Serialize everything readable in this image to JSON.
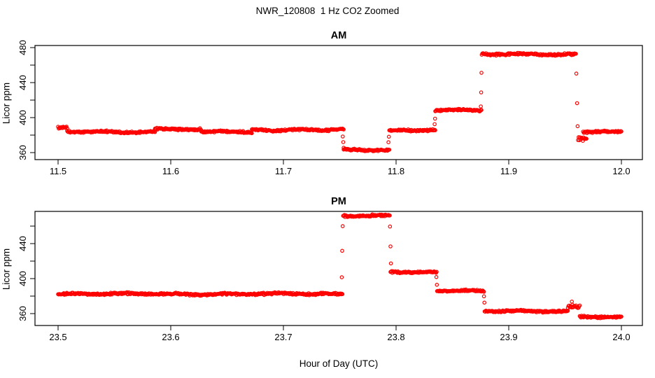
{
  "figure": {
    "title": "NWR_120808  1 Hz CO2 Zoomed",
    "xlabel": "Hour of Day (UTC)"
  },
  "colors": {
    "points": "#FF0000",
    "axis": "#000000",
    "background": "#FFFFFF"
  },
  "chart_data": [
    {
      "type": "scatter",
      "title": "AM",
      "ylabel": "Licor ppm",
      "marker": "open-circle",
      "xlim": [
        11.48,
        12.02
      ],
      "ylim": [
        352.0,
        482.4
      ],
      "x_ticks": [
        {
          "v": 11.5,
          "label": "11.5"
        },
        {
          "v": 11.6,
          "label": "11.6"
        },
        {
          "v": 11.7,
          "label": "11.7"
        },
        {
          "v": 11.8,
          "label": "11.8"
        },
        {
          "v": 11.9,
          "label": "11.9"
        },
        {
          "v": 12.0,
          "label": "12.0"
        }
      ],
      "y_ticks": [
        {
          "v": 360,
          "label": "360"
        },
        {
          "v": 380,
          "label": ""
        },
        {
          "v": 400,
          "label": "400"
        },
        {
          "v": 420,
          "label": ""
        },
        {
          "v": 440,
          "label": "440"
        },
        {
          "v": 460,
          "label": ""
        },
        {
          "v": 480,
          "label": "480"
        }
      ],
      "segments": [
        {
          "t0": 11.5,
          "t1": 11.508,
          "level": 388.5,
          "noise": 1.2,
          "wiggle": 0.3
        },
        {
          "t0": 11.508,
          "t1": 11.586,
          "level": 383.8,
          "noise": 1.4,
          "wiggle": 0.7
        },
        {
          "t0": 11.586,
          "t1": 11.627,
          "level": 387.0,
          "noise": 1.3,
          "wiggle": 0.5
        },
        {
          "t0": 11.627,
          "t1": 11.672,
          "level": 384.0,
          "noise": 1.3,
          "wiggle": 0.6
        },
        {
          "t0": 11.672,
          "t1": 11.7535,
          "level": 386.3,
          "noise": 1.3,
          "wiggle": 0.8
        },
        {
          "t0": 11.7535,
          "t1": 11.794,
          "level": 362.8,
          "noise": 1.3,
          "wiggle": 0.5
        },
        {
          "t0": 11.794,
          "t1": 11.8348,
          "level": 385.5,
          "noise": 1.3,
          "wiggle": 0.5
        },
        {
          "t0": 11.8348,
          "t1": 11.8758,
          "level": 408.3,
          "noise": 1.2,
          "wiggle": 0.5
        },
        {
          "t0": 11.876,
          "t1": 11.9596,
          "level": 472.4,
          "noise": 1.4,
          "wiggle": 0.6
        },
        {
          "t0": 11.9615,
          "t1": 11.969,
          "level": 375.5,
          "noise": 3.0,
          "wiggle": 0.0
        },
        {
          "t0": 11.966,
          "t1": 12.0,
          "level": 383.6,
          "noise": 1.3,
          "wiggle": 0.5
        }
      ],
      "transition_points": [
        {
          "t": 11.7527,
          "v": 378.4
        },
        {
          "t": 11.7531,
          "v": 372.0
        },
        {
          "t": 11.7535,
          "v": 365.5
        },
        {
          "t": 11.7932,
          "v": 371.8
        },
        {
          "t": 11.7936,
          "v": 378.2
        },
        {
          "t": 11.8342,
          "v": 392.5
        },
        {
          "t": 11.8346,
          "v": 398.8
        },
        {
          "t": 11.8752,
          "v": 412.8
        },
        {
          "t": 11.8755,
          "v": 428.8
        },
        {
          "t": 11.8758,
          "v": 451.2
        },
        {
          "t": 11.96,
          "v": 450.3
        },
        {
          "t": 11.9606,
          "v": 416.5
        },
        {
          "t": 11.9611,
          "v": 390.2
        }
      ]
    },
    {
      "type": "scatter",
      "title": "PM",
      "ylabel": "Licor ppm",
      "marker": "open-circle",
      "xlim": [
        23.48,
        24.02
      ],
      "ylim": [
        346.4,
        476.8
      ],
      "x_ticks": [
        {
          "v": 23.5,
          "label": "23.5"
        },
        {
          "v": 23.6,
          "label": "23.6"
        },
        {
          "v": 23.7,
          "label": "23.7"
        },
        {
          "v": 23.8,
          "label": "23.8"
        },
        {
          "v": 23.9,
          "label": "23.9"
        },
        {
          "v": 24.0,
          "label": "24.0"
        }
      ],
      "y_ticks": [
        {
          "v": 360,
          "label": "360"
        },
        {
          "v": 380,
          "label": ""
        },
        {
          "v": 400,
          "label": "400"
        },
        {
          "v": 420,
          "label": ""
        },
        {
          "v": 440,
          "label": "440"
        },
        {
          "v": 460,
          "label": ""
        }
      ],
      "segments": [
        {
          "t0": 23.5,
          "t1": 23.7524,
          "level": 382.4,
          "noise": 1.4,
          "wiggle": 0.6
        },
        {
          "t0": 23.753,
          "t1": 23.7944,
          "level": 471.8,
          "noise": 1.4,
          "wiggle": 0.5
        },
        {
          "t0": 23.795,
          "t1": 23.836,
          "level": 407.6,
          "noise": 1.3,
          "wiggle": 0.6
        },
        {
          "t0": 23.8364,
          "t1": 23.878,
          "level": 385.9,
          "noise": 1.3,
          "wiggle": 0.5
        },
        {
          "t0": 23.8786,
          "t1": 23.9525,
          "level": 362.6,
          "noise": 1.3,
          "wiggle": 0.6
        },
        {
          "t0": 23.9525,
          "t1": 23.963,
          "level": 368.0,
          "noise": 2.2,
          "wiggle": 0.0
        },
        {
          "t0": 23.963,
          "t1": 24.0,
          "level": 356.4,
          "noise": 1.3,
          "wiggle": 0.4
        }
      ],
      "transition_points": [
        {
          "t": 23.7518,
          "v": 401.5
        },
        {
          "t": 23.7522,
          "v": 431.8
        },
        {
          "t": 23.7526,
          "v": 459.9
        },
        {
          "t": 23.7946,
          "v": 459.5
        },
        {
          "t": 23.795,
          "v": 436.8
        },
        {
          "t": 23.7954,
          "v": 417.4
        },
        {
          "t": 23.8358,
          "v": 401.8
        },
        {
          "t": 23.8362,
          "v": 393.0
        },
        {
          "t": 23.878,
          "v": 379.8
        },
        {
          "t": 23.8784,
          "v": 372.6
        },
        {
          "t": 23.956,
          "v": 373.8
        }
      ]
    }
  ]
}
